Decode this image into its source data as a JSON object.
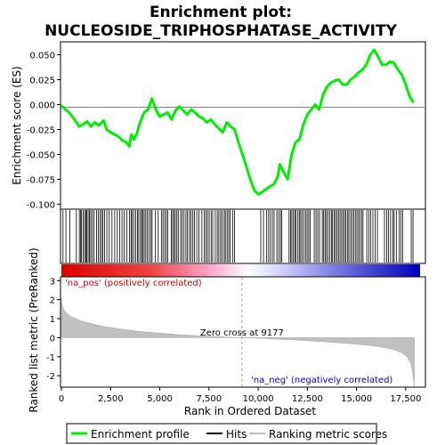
{
  "chart_data": {
    "type": "line",
    "title_line1": "Enrichment plot:",
    "title_line2": "NUCLEOSIDE_TRIPHOSPHATASE_ACTIVITY",
    "top_panel": {
      "ylabel": "Enrichment score (ES)",
      "ylim": [
        -0.105,
        0.063
      ],
      "yticks": [
        0.05,
        0.025,
        0.0,
        -0.025,
        -0.05,
        -0.075,
        -0.1
      ],
      "ytick_labels": [
        "0.050",
        "0.025",
        "0.000",
        "-0.025",
        "-0.050",
        "-0.075",
        "-0.100"
      ],
      "series": [
        {
          "name": "Enrichment profile",
          "color": "#00ee00",
          "x": [
            0,
            150,
            400,
            700,
            900,
            1100,
            1300,
            1500,
            1700,
            1900,
            2150,
            2300,
            2500,
            2700,
            2900,
            3100,
            3300,
            3450,
            3550,
            3700,
            3850,
            4000,
            4200,
            4400,
            4600,
            4800,
            5000,
            5200,
            5400,
            5600,
            5800,
            6000,
            6200,
            6400,
            6600,
            6800,
            7000,
            7200,
            7400,
            7600,
            7800,
            8000,
            8200,
            8400,
            8600,
            8800,
            9000,
            9200,
            9400,
            9600,
            9800,
            10000,
            10200,
            10400,
            10600,
            10800,
            11000,
            11100,
            11300,
            11500,
            11700,
            11900,
            12100,
            12300,
            12500,
            12700,
            12900,
            13100,
            13300,
            13500,
            13700,
            13900,
            14100,
            14300,
            14500,
            14700,
            14900,
            15100,
            15300,
            15500,
            15700,
            15900,
            16100,
            16300,
            16500,
            16700,
            16900,
            17100,
            17300,
            17500,
            17700,
            17900
          ],
          "y": [
            -0.001,
            -0.004,
            -0.008,
            -0.016,
            -0.022,
            -0.02,
            -0.017,
            -0.022,
            -0.018,
            -0.021,
            -0.016,
            -0.025,
            -0.028,
            -0.03,
            -0.032,
            -0.036,
            -0.038,
            -0.042,
            -0.03,
            -0.035,
            -0.028,
            -0.018,
            -0.008,
            -0.005,
            0.006,
            -0.005,
            -0.012,
            -0.01,
            -0.008,
            -0.015,
            -0.006,
            -0.002,
            -0.006,
            -0.01,
            -0.005,
            -0.008,
            -0.012,
            -0.014,
            -0.018,
            -0.015,
            -0.02,
            -0.024,
            -0.028,
            -0.018,
            -0.022,
            -0.025,
            -0.038,
            -0.05,
            -0.062,
            -0.075,
            -0.086,
            -0.09,
            -0.088,
            -0.085,
            -0.082,
            -0.08,
            -0.072,
            -0.06,
            -0.068,
            -0.075,
            -0.05,
            -0.038,
            -0.035,
            -0.02,
            -0.01,
            -0.005,
            0.0,
            -0.005,
            0.01,
            0.018,
            0.022,
            0.024,
            0.025,
            0.02,
            0.02,
            0.025,
            0.028,
            0.032,
            0.035,
            0.04,
            0.05,
            0.055,
            0.048,
            0.04,
            0.04,
            0.043,
            0.042,
            0.035,
            0.03,
            0.02,
            0.008,
            0.002
          ]
        }
      ]
    },
    "hits": {
      "name": "Hits",
      "x": [
        80,
        230,
        430,
        760,
        910,
        980,
        1020,
        1110,
        1180,
        1240,
        1290,
        1360,
        1420,
        1490,
        1570,
        1650,
        1790,
        1880,
        1960,
        2040,
        2110,
        2190,
        2310,
        2430,
        2570,
        2710,
        2840,
        2960,
        3080,
        3190,
        3330,
        3460,
        3540,
        3600,
        3690,
        3780,
        3870,
        3930,
        4020,
        4080,
        4140,
        4210,
        4290,
        4370,
        4460,
        4540,
        4610,
        4780,
        4920,
        5080,
        5160,
        5250,
        5330,
        5410,
        5580,
        5650,
        5720,
        5790,
        5870,
        5940,
        6060,
        6140,
        6230,
        6330,
        6410,
        6510,
        6590,
        6680,
        6760,
        6880,
        6990,
        7140,
        7260,
        7340,
        7420,
        7510,
        7610,
        7690,
        7820,
        7920,
        8000,
        8090,
        8170,
        8270,
        8330,
        8420,
        8500,
        8570,
        8700,
        8800,
        10130,
        10270,
        10420,
        10530,
        10620,
        10720,
        10810,
        10950,
        11040,
        11130,
        11200,
        11570,
        11650,
        11710,
        11790,
        11860,
        11920,
        12020,
        12090,
        12160,
        12240,
        12320,
        12410,
        12490,
        12570,
        12640,
        12850,
        12940,
        13030,
        13120,
        13260,
        13330,
        13400,
        13470,
        13550,
        13640,
        13720,
        13780,
        13860,
        13930,
        14010,
        14080,
        14160,
        14240,
        14310,
        14390,
        14460,
        14550,
        14610,
        14700,
        14780,
        14860,
        14940,
        15020,
        15100,
        15170,
        15260,
        15330,
        15520,
        15620,
        15720,
        15830,
        15940,
        16060,
        16420,
        16530,
        16620,
        16730,
        16840,
        16910,
        17020,
        17160,
        17260,
        17350,
        17780,
        17870
      ]
    },
    "bottom_panel": {
      "ylabel": "Ranked list metric (PreRanked)",
      "xlabel": "Rank in Ordered Dataset",
      "ylim": [
        -2.6,
        3.2
      ],
      "yticks": [
        3,
        2,
        1,
        0,
        -1,
        -2
      ],
      "ytick_labels": [
        "3",
        "2",
        "1",
        "0",
        "-1",
        "-2"
      ],
      "xlim": [
        0,
        18500
      ],
      "xticks": [
        0,
        2500,
        5000,
        7500,
        10000,
        12500,
        15000,
        17500
      ],
      "xtick_labels": [
        "0",
        "2,500",
        "5,000",
        "7,500",
        "10,000",
        "12,500",
        "15,000",
        "17,500"
      ],
      "metric_x": [
        0,
        50,
        200,
        500,
        1000,
        2000,
        3000,
        4000,
        5000,
        6000,
        7000,
        8000,
        9000,
        9177,
        10000,
        11000,
        12000,
        13000,
        14000,
        15000,
        16000,
        16800,
        17300,
        17600,
        17780,
        17870,
        17940
      ],
      "metric_y": [
        2.05,
        1.65,
        1.35,
        1.1,
        0.88,
        0.62,
        0.46,
        0.33,
        0.24,
        0.16,
        0.1,
        0.05,
        0.01,
        0.0,
        -0.03,
        -0.08,
        -0.13,
        -0.19,
        -0.26,
        -0.34,
        -0.45,
        -0.6,
        -0.8,
        -1.05,
        -1.4,
        -2.0,
        -2.55
      ],
      "zero_cross_rank": 9177,
      "zero_cross_label": "Zero cross at 9177",
      "pos_label": "'na_pos' (positively correlated)",
      "neg_label": "'na_neg' (negatively correlated)"
    },
    "colors": {
      "enrichment_line": "#00ee00",
      "hits": "#000000",
      "metric_fill": "#c0c0c0",
      "pos_text": "#cc0000",
      "neg_text": "#0000cc"
    },
    "legend": [
      {
        "label": "Enrichment profile",
        "color": "#00ee00"
      },
      {
        "label": "Hits",
        "color": "#000000"
      },
      {
        "label": "Ranking metric scores",
        "color": "#c0c0c0"
      }
    ]
  }
}
